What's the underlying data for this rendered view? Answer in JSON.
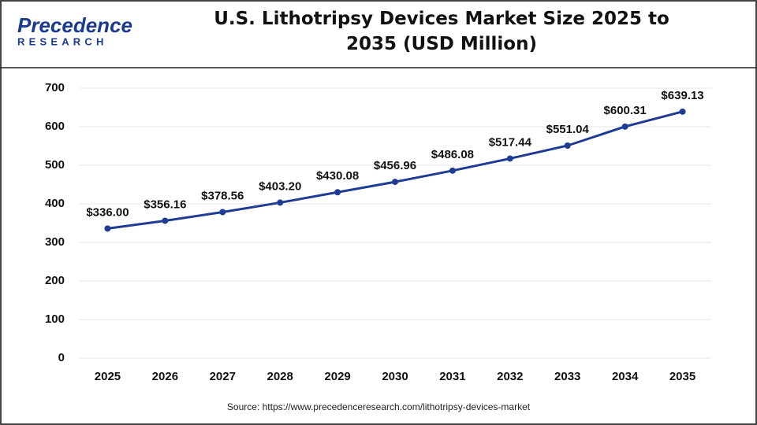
{
  "logo": {
    "name": "Precedence",
    "tagline": "RESEARCH"
  },
  "source": "Source: https://www.precedenceresearch.com/lithotripsy-devices-market",
  "chart_data": {
    "type": "line",
    "title": "U.S. Lithotripsy Devices Market Size 2025 to 2035 (USD Million)",
    "categories": [
      "2025",
      "2026",
      "2027",
      "2028",
      "2029",
      "2030",
      "2031",
      "2032",
      "2033",
      "2034",
      "2035"
    ],
    "values": [
      336.0,
      356.16,
      378.56,
      403.2,
      430.08,
      456.96,
      486.08,
      517.44,
      551.04,
      600.31,
      639.13
    ],
    "value_labels": [
      "$336.00",
      "$356.16",
      "$378.56",
      "$403.20",
      "$430.08",
      "$456.96",
      "$486.08",
      "$517.44",
      "$551.04",
      "$600.31",
      "$639.13"
    ],
    "color": "#1f3c94",
    "ylim": [
      0,
      700
    ],
    "yticks": [
      0,
      100,
      200,
      300,
      400,
      500,
      600,
      700
    ],
    "grid": true
  }
}
